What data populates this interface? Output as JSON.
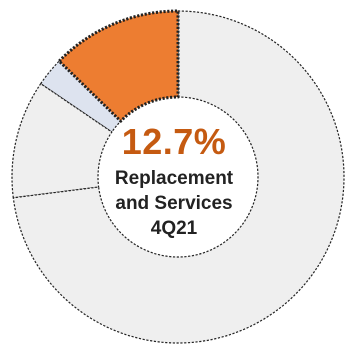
{
  "chart_data": {
    "type": "pie",
    "donut": true,
    "center_value": "12.7%",
    "center_lines": [
      "Replacement",
      "and Services",
      "4Q21"
    ],
    "slices": [
      {
        "value": 12.7,
        "highlighted": true
      },
      {
        "value": 2.8,
        "highlighted": false
      },
      {
        "value": 11.5,
        "highlighted": false
      },
      {
        "value": 73.0,
        "highlighted": false
      }
    ],
    "colors": {
      "highlight": "#ed7d31",
      "secondary": "#dde3ef",
      "neutral": "#efefef",
      "center_value_text": "#c55a11",
      "border": "#222222"
    }
  }
}
